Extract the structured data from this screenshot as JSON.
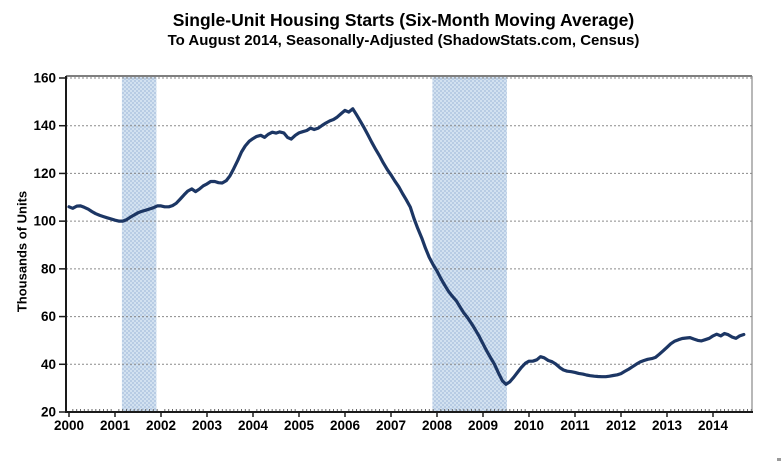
{
  "chart_data": {
    "type": "line",
    "title": "Single-Unit Housing Starts (Six-Month Moving Average)",
    "subtitle": "To August 2014, Seasonally-Adjusted (ShadowStats.com, Census)",
    "ylabel": "Thousands of Units",
    "xlabel": "",
    "x_unit": "calendar year (decimal)",
    "y_unit": "thousands of units",
    "xlim": [
      2000,
      2014.85
    ],
    "ylim": [
      20,
      160
    ],
    "yticks": [
      20,
      40,
      60,
      80,
      100,
      120,
      140,
      160
    ],
    "xticks": [
      2000,
      2001,
      2002,
      2003,
      2004,
      2005,
      2006,
      2007,
      2008,
      2009,
      2010,
      2011,
      2012,
      2013,
      2014
    ],
    "grid": "horizontal dashed gray",
    "legend": "none",
    "recession_bands": [
      {
        "from": 2001.15,
        "to": 2001.9
      },
      {
        "from": 2007.9,
        "to": 2009.52
      }
    ],
    "colors": {
      "line": "#1C3664",
      "band_base": "#B8CCE4",
      "band_dot": "#D2E1F0",
      "grid": "#8a8a8a",
      "axis_dark": "#1a1a1a",
      "border_top": "#555555",
      "border_right": "#888888",
      "text": "#000000",
      "background": "#FFFFFF"
    },
    "series": [
      {
        "name": "Single-unit housing starts, six-month moving average",
        "points": [
          [
            2000.0,
            106.0
          ],
          [
            2000.08,
            105.4
          ],
          [
            2000.17,
            106.3
          ],
          [
            2000.25,
            106.4
          ],
          [
            2000.33,
            105.8
          ],
          [
            2000.42,
            105.0
          ],
          [
            2000.5,
            104.0
          ],
          [
            2000.58,
            103.1
          ],
          [
            2000.67,
            102.4
          ],
          [
            2000.75,
            101.9
          ],
          [
            2000.83,
            101.4
          ],
          [
            2000.92,
            100.9
          ],
          [
            2001.0,
            100.4
          ],
          [
            2001.08,
            100.0
          ],
          [
            2001.17,
            100.0
          ],
          [
            2001.25,
            100.6
          ],
          [
            2001.33,
            101.6
          ],
          [
            2001.42,
            102.6
          ],
          [
            2001.5,
            103.5
          ],
          [
            2001.58,
            104.1
          ],
          [
            2001.67,
            104.6
          ],
          [
            2001.75,
            105.1
          ],
          [
            2001.83,
            105.6
          ],
          [
            2001.92,
            106.4
          ],
          [
            2002.0,
            106.4
          ],
          [
            2002.08,
            106.0
          ],
          [
            2002.17,
            106.0
          ],
          [
            2002.25,
            106.5
          ],
          [
            2002.33,
            107.5
          ],
          [
            2002.42,
            109.3
          ],
          [
            2002.5,
            111.0
          ],
          [
            2002.58,
            112.6
          ],
          [
            2002.67,
            113.5
          ],
          [
            2002.75,
            112.4
          ],
          [
            2002.83,
            113.4
          ],
          [
            2002.92,
            114.8
          ],
          [
            2003.0,
            115.6
          ],
          [
            2003.08,
            116.6
          ],
          [
            2003.17,
            116.6
          ],
          [
            2003.25,
            116.1
          ],
          [
            2003.33,
            116.0
          ],
          [
            2003.42,
            117.0
          ],
          [
            2003.5,
            119.0
          ],
          [
            2003.58,
            122.0
          ],
          [
            2003.67,
            125.5
          ],
          [
            2003.75,
            129.0
          ],
          [
            2003.83,
            131.5
          ],
          [
            2003.92,
            133.5
          ],
          [
            2004.0,
            134.6
          ],
          [
            2004.08,
            135.5
          ],
          [
            2004.17,
            136.0
          ],
          [
            2004.25,
            135.1
          ],
          [
            2004.33,
            136.4
          ],
          [
            2004.42,
            137.3
          ],
          [
            2004.5,
            136.9
          ],
          [
            2004.58,
            137.4
          ],
          [
            2004.67,
            137.0
          ],
          [
            2004.75,
            135.1
          ],
          [
            2004.83,
            134.4
          ],
          [
            2004.92,
            136.0
          ],
          [
            2005.0,
            137.0
          ],
          [
            2005.08,
            137.5
          ],
          [
            2005.17,
            138.0
          ],
          [
            2005.25,
            139.0
          ],
          [
            2005.33,
            138.4
          ],
          [
            2005.42,
            139.0
          ],
          [
            2005.5,
            140.1
          ],
          [
            2005.58,
            141.1
          ],
          [
            2005.67,
            142.0
          ],
          [
            2005.75,
            142.6
          ],
          [
            2005.83,
            143.6
          ],
          [
            2005.92,
            145.1
          ],
          [
            2006.0,
            146.4
          ],
          [
            2006.08,
            145.7
          ],
          [
            2006.17,
            147.1
          ],
          [
            2006.25,
            144.6
          ],
          [
            2006.33,
            142.0
          ],
          [
            2006.42,
            139.0
          ],
          [
            2006.5,
            136.1
          ],
          [
            2006.58,
            133.1
          ],
          [
            2006.67,
            130.0
          ],
          [
            2006.75,
            127.4
          ],
          [
            2006.83,
            124.5
          ],
          [
            2006.92,
            121.6
          ],
          [
            2007.0,
            119.4
          ],
          [
            2007.08,
            116.9
          ],
          [
            2007.17,
            114.4
          ],
          [
            2007.25,
            111.6
          ],
          [
            2007.33,
            109.0
          ],
          [
            2007.42,
            105.9
          ],
          [
            2007.5,
            101.1
          ],
          [
            2007.58,
            97.0
          ],
          [
            2007.67,
            92.9
          ],
          [
            2007.75,
            88.6
          ],
          [
            2007.83,
            84.9
          ],
          [
            2007.92,
            81.6
          ],
          [
            2008.0,
            79.1
          ],
          [
            2008.08,
            76.1
          ],
          [
            2008.17,
            73.1
          ],
          [
            2008.25,
            70.6
          ],
          [
            2008.33,
            68.6
          ],
          [
            2008.42,
            66.6
          ],
          [
            2008.5,
            64.1
          ],
          [
            2008.58,
            61.6
          ],
          [
            2008.67,
            59.4
          ],
          [
            2008.75,
            57.1
          ],
          [
            2008.83,
            54.6
          ],
          [
            2008.92,
            51.6
          ],
          [
            2009.0,
            48.6
          ],
          [
            2009.08,
            45.6
          ],
          [
            2009.17,
            42.6
          ],
          [
            2009.25,
            40.0
          ],
          [
            2009.33,
            36.6
          ],
          [
            2009.42,
            33.1
          ],
          [
            2009.5,
            31.6
          ],
          [
            2009.58,
            32.6
          ],
          [
            2009.67,
            34.6
          ],
          [
            2009.75,
            36.6
          ],
          [
            2009.83,
            38.6
          ],
          [
            2009.92,
            40.4
          ],
          [
            2010.0,
            41.3
          ],
          [
            2010.08,
            41.3
          ],
          [
            2010.17,
            41.9
          ],
          [
            2010.25,
            43.2
          ],
          [
            2010.33,
            42.7
          ],
          [
            2010.42,
            41.6
          ],
          [
            2010.5,
            41.1
          ],
          [
            2010.58,
            40.1
          ],
          [
            2010.67,
            38.6
          ],
          [
            2010.75,
            37.6
          ],
          [
            2010.83,
            37.1
          ],
          [
            2010.92,
            36.9
          ],
          [
            2011.0,
            36.6
          ],
          [
            2011.08,
            36.2
          ],
          [
            2011.17,
            35.9
          ],
          [
            2011.25,
            35.5
          ],
          [
            2011.33,
            35.2
          ],
          [
            2011.42,
            35.0
          ],
          [
            2011.5,
            34.9
          ],
          [
            2011.58,
            34.8
          ],
          [
            2011.67,
            34.8
          ],
          [
            2011.75,
            35.0
          ],
          [
            2011.83,
            35.3
          ],
          [
            2011.92,
            35.6
          ],
          [
            2012.0,
            36.1
          ],
          [
            2012.08,
            37.0
          ],
          [
            2012.17,
            38.0
          ],
          [
            2012.25,
            39.0
          ],
          [
            2012.33,
            40.0
          ],
          [
            2012.42,
            41.0
          ],
          [
            2012.5,
            41.6
          ],
          [
            2012.58,
            42.1
          ],
          [
            2012.67,
            42.4
          ],
          [
            2012.75,
            42.9
          ],
          [
            2012.83,
            44.2
          ],
          [
            2012.92,
            45.7
          ],
          [
            2013.0,
            47.1
          ],
          [
            2013.08,
            48.6
          ],
          [
            2013.17,
            49.7
          ],
          [
            2013.25,
            50.3
          ],
          [
            2013.33,
            50.8
          ],
          [
            2013.42,
            51.0
          ],
          [
            2013.5,
            51.2
          ],
          [
            2013.58,
            50.6
          ],
          [
            2013.67,
            50.0
          ],
          [
            2013.75,
            49.8
          ],
          [
            2013.83,
            50.3
          ],
          [
            2013.92,
            50.9
          ],
          [
            2014.0,
            51.9
          ],
          [
            2014.08,
            52.6
          ],
          [
            2014.17,
            51.9
          ],
          [
            2014.25,
            52.9
          ],
          [
            2014.33,
            52.4
          ],
          [
            2014.42,
            51.4
          ],
          [
            2014.5,
            50.9
          ],
          [
            2014.58,
            51.9
          ],
          [
            2014.67,
            52.5
          ]
        ]
      }
    ]
  }
}
